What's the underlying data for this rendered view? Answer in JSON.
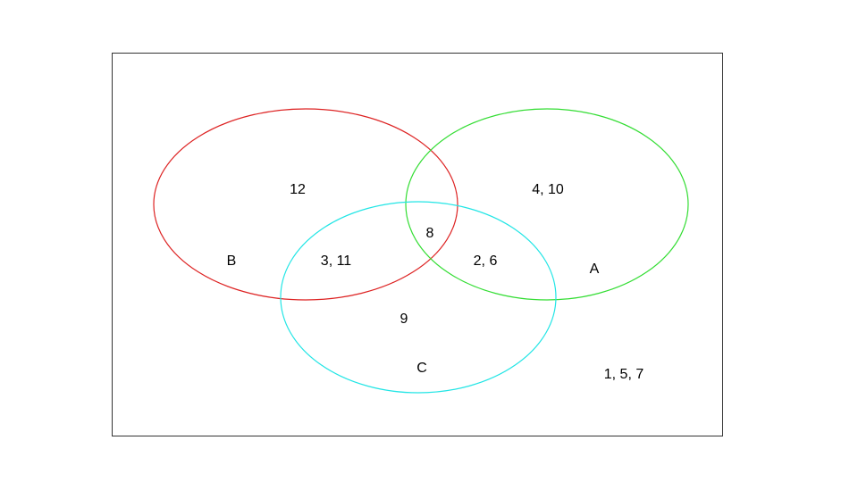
{
  "sets": {
    "a": {
      "label": "A",
      "color": "#33dd33"
    },
    "b": {
      "label": "B",
      "color": "#dd2222"
    },
    "c": {
      "label": "C",
      "color": "#22e5e5"
    }
  },
  "regions": {
    "b_only": "12",
    "a_only": "4, 10",
    "a_b_c": "8",
    "b_c": "3, 11",
    "a_c": "2, 6",
    "c_only": "9",
    "outside": "1, 5, 7"
  },
  "frame_color": "#333333"
}
